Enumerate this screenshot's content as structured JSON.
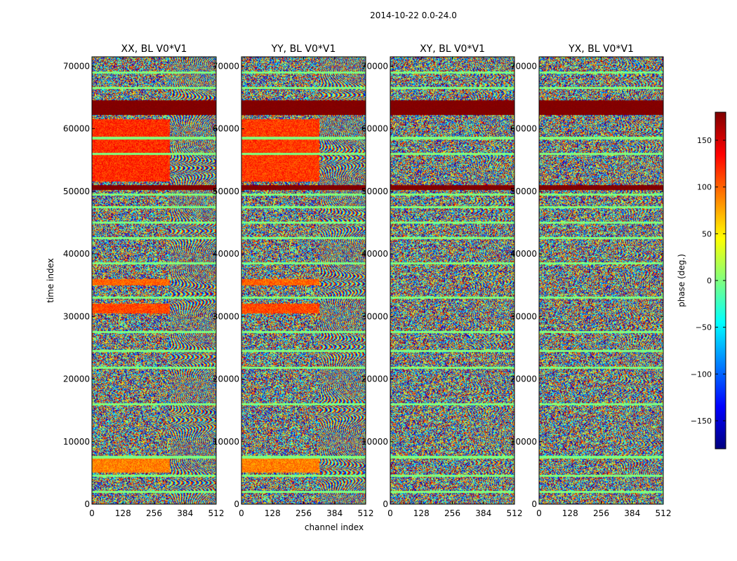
{
  "figure": {
    "suptitle": "2014-10-22 0.0-24.0"
  },
  "chart_data": {
    "type": "heatmap",
    "shared": {
      "xlabel": "channel index",
      "ylabel": "time index",
      "xlim": [
        0,
        512
      ],
      "ylim": [
        0,
        71500
      ],
      "xticks": [
        0,
        128,
        256,
        384,
        512
      ],
      "yticks": [
        0,
        10000,
        20000,
        30000,
        40000,
        50000,
        60000,
        70000
      ]
    },
    "panels": [
      {
        "title": "XX, BL V0*V1",
        "pol": "XX",
        "bands": [
          {
            "y0": 62200,
            "y1": 64500,
            "phase": 180,
            "fill": "full"
          },
          {
            "y0": 50200,
            "y1": 51000,
            "phase": 180,
            "fill": "full"
          },
          {
            "y0": 51500,
            "y1": 61500,
            "phase": 120,
            "fill": "partial",
            "ch_end": 320
          },
          {
            "y0": 30500,
            "y1": 32000,
            "phase": 110,
            "fill": "partial",
            "ch_end": 320
          },
          {
            "y0": 35000,
            "y1": 36000,
            "phase": 100,
            "fill": "partial",
            "ch_end": 320
          },
          {
            "y0": 5000,
            "y1": 7500,
            "phase": 90,
            "fill": "partial",
            "ch_end": 320
          }
        ]
      },
      {
        "title": "YY, BL V0*V1",
        "pol": "YY",
        "bands": [
          {
            "y0": 62200,
            "y1": 64500,
            "phase": 180,
            "fill": "full"
          },
          {
            "y0": 50200,
            "y1": 51000,
            "phase": 180,
            "fill": "full"
          },
          {
            "y0": 51500,
            "y1": 61500,
            "phase": 115,
            "fill": "partial",
            "ch_end": 320
          },
          {
            "y0": 30500,
            "y1": 32000,
            "phase": 110,
            "fill": "partial",
            "ch_end": 320
          },
          {
            "y0": 35000,
            "y1": 36000,
            "phase": 100,
            "fill": "partial",
            "ch_end": 320
          },
          {
            "y0": 5000,
            "y1": 7500,
            "phase": 90,
            "fill": "partial",
            "ch_end": 320
          }
        ]
      },
      {
        "title": "XY, BL V0*V1",
        "pol": "XY",
        "bands": [
          {
            "y0": 62200,
            "y1": 64500,
            "phase": 180,
            "fill": "full"
          },
          {
            "y0": 50200,
            "y1": 51000,
            "phase": 180,
            "fill": "full"
          }
        ]
      },
      {
        "title": "YX, BL V0*V1",
        "pol": "YX",
        "bands": [
          {
            "y0": 62200,
            "y1": 64500,
            "phase": 180,
            "fill": "full"
          },
          {
            "y0": 50200,
            "y1": 51000,
            "phase": 180,
            "fill": "full"
          }
        ]
      }
    ],
    "flagged_rows": [
      2000,
      4500,
      7500,
      16000,
      21800,
      24500,
      27500,
      33000,
      38500,
      42500,
      45000,
      47500,
      49500,
      56000,
      58500,
      66500,
      69000
    ],
    "colorbar": {
      "label": "phase (deg.)",
      "range": [
        -180,
        180
      ],
      "ticks": [
        150,
        100,
        50,
        0,
        -50,
        -100,
        -150
      ],
      "colormap": [
        "#00007f",
        "#0000ff",
        "#007fff",
        "#00ffff",
        "#7fff7f",
        "#ffff00",
        "#ff7f00",
        "#ff0000",
        "#7f0000"
      ]
    }
  }
}
